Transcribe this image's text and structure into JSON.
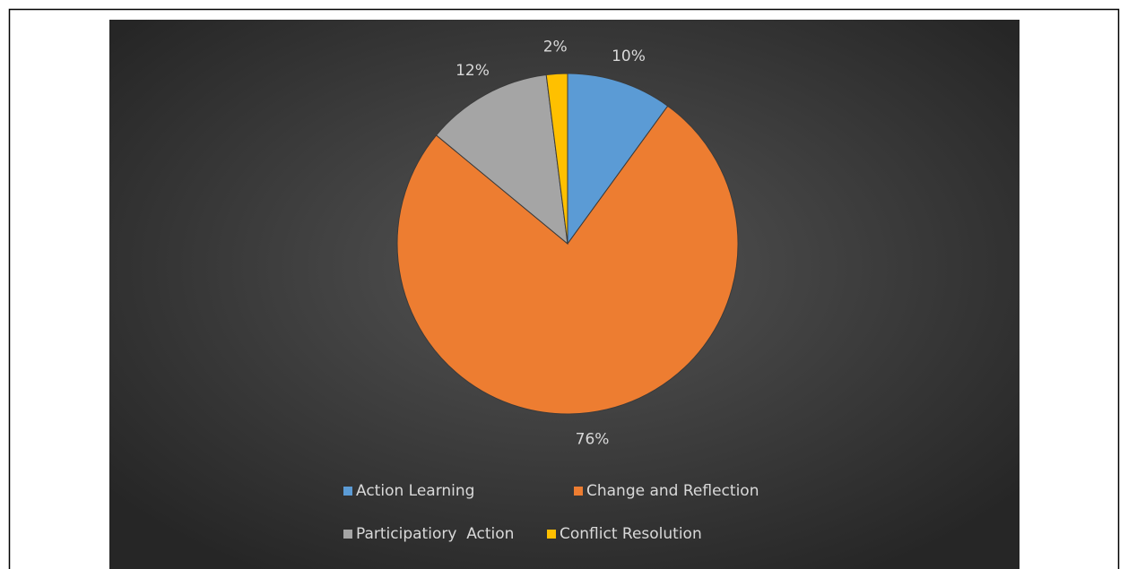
{
  "chart_data": {
    "type": "pie",
    "categories": [
      "Action Learning",
      "Change and Reflection",
      "Participatiory  Action",
      "Conflict Resolution"
    ],
    "values": [
      10,
      76,
      12,
      2
    ],
    "value_labels": [
      "10%",
      "76%",
      "12%",
      "2%"
    ],
    "colors": [
      "#5b9bd5",
      "#ed7d31",
      "#a5a5a5",
      "#ffc000"
    ],
    "legend": "bottom"
  }
}
